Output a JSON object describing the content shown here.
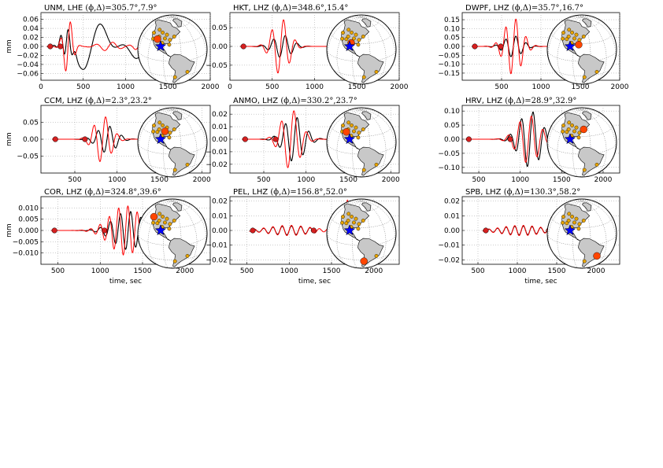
{
  "figure": {
    "ylabel": "mm",
    "xlabel": "time, sec"
  },
  "colors": {
    "observed": "#000000",
    "synthetic": "#ff0000",
    "marker": "#d62020",
    "station": "#e8a400",
    "station_selected": "#ff4500",
    "event": "#0000ff",
    "land": "#c8c8c8",
    "ocean": "#ffffff"
  },
  "chart_data": [
    {
      "type": "line",
      "station": "UNM",
      "component": "LHE",
      "title": "UNM, LHE ",
      "params": "(ϕ,Δ)=305.7°,7.9°",
      "xlim": [
        0,
        2000
      ],
      "ylim": [
        -0.075,
        0.075
      ],
      "xticks": [
        0,
        500,
        1000,
        1500,
        2000
      ],
      "yticks": [
        0.06,
        0.04,
        0.02,
        0.0,
        -0.02,
        -0.04,
        -0.06
      ],
      "ytick_labels": [
        "0.06",
        "0.04",
        "0.02",
        "0.00",
        "−0.02",
        "−0.04",
        "−0.06"
      ],
      "show_xlabel": false,
      "show_ylabel": true,
      "markers_x": [
        110,
        230
      ],
      "obs_end": 1480,
      "syn_end": 1500,
      "obs_packets": [
        {
          "t": 300,
          "a": 0.03,
          "p": 90,
          "w": 60
        },
        {
          "t": 600,
          "a": 0.062,
          "p": 480,
          "w": 180
        },
        {
          "t": 1220,
          "a": 0.03,
          "p": 400,
          "w": 220
        }
      ],
      "syn_packets": [
        {
          "t": 320,
          "a": 0.062,
          "p": 120,
          "w": 55
        },
        {
          "t": 800,
          "a": 0.01,
          "p": 200,
          "w": 120
        },
        {
          "t": 1150,
          "a": 0.008,
          "p": 150,
          "w": 60
        }
      ],
      "globe_station": {
        "lon": -107,
        "lat": 35
      }
    },
    {
      "type": "line",
      "station": "HKT",
      "component": "LHZ",
      "title": "HKT, LHZ ",
      "params": "(ϕ,Δ)=348.6°,15.4°",
      "xlim": [
        0,
        2000
      ],
      "ylim": [
        -0.09,
        0.09
      ],
      "xticks": [
        0,
        500,
        1000,
        1500,
        2000
      ],
      "yticks": [
        0.05,
        0.0,
        -0.05
      ],
      "ytick_labels": [
        "0.05",
        "0.00",
        "−0.05"
      ],
      "show_xlabel": false,
      "show_ylabel": false,
      "markers_x": [
        160
      ],
      "obs_end": 1950,
      "syn_end": 1950,
      "obs_packets": [
        {
          "t": 620,
          "a": 0.03,
          "p": 140,
          "w": 110
        }
      ],
      "syn_packets": [
        {
          "t": 600,
          "a": 0.075,
          "p": 140,
          "w": 100
        }
      ],
      "globe_station": {
        "lon": -95,
        "lat": 30
      }
    },
    {
      "type": "line",
      "station": "DWPF",
      "component": "LHZ",
      "title": "DWPF, LHZ ",
      "params": "(ϕ,Δ)=35.7°,16.7°",
      "xlim": [
        0,
        2000
      ],
      "ylim": [
        -0.19,
        0.19
      ],
      "xticks": [
        500,
        1000,
        1500,
        2000
      ],
      "yticks": [
        0.15,
        0.1,
        0.05,
        0.0,
        -0.05,
        -0.1,
        -0.15
      ],
      "ytick_labels": [
        "0.15",
        "0.10",
        "0.05",
        "0.00",
        "−0.05",
        "−0.10",
        "−0.15"
      ],
      "show_xlabel": false,
      "show_ylabel": false,
      "markers_x": [
        160,
        490
      ],
      "obs_end": 1950,
      "syn_end": 1950,
      "obs_packets": [
        {
          "t": 650,
          "a": 0.06,
          "p": 130,
          "w": 110
        }
      ],
      "syn_packets": [
        {
          "t": 650,
          "a": 0.16,
          "p": 130,
          "w": 110
        }
      ],
      "globe_station": {
        "lon": -81,
        "lat": 28
      }
    },
    {
      "type": "line",
      "station": "CCM",
      "component": "LHZ",
      "title": "CCM, LHZ ",
      "params": "(ϕ,Δ)=2.3°,23.2°",
      "xlim": [
        100,
        2100
      ],
      "ylim": [
        -0.1,
        0.1
      ],
      "xticks": [
        500,
        1000,
        1500,
        2000
      ],
      "yticks": [
        0.05,
        0.0,
        -0.05
      ],
      "ytick_labels": [
        "0.05",
        "0.00",
        "−0.05"
      ],
      "show_xlabel": false,
      "show_ylabel": true,
      "markers_x": [
        270,
        620
      ],
      "obs_end": 1600,
      "syn_end": 1600,
      "obs_packets": [
        {
          "t": 880,
          "a": 0.04,
          "p": 140,
          "w": 110
        }
      ],
      "syn_packets": [
        {
          "t": 830,
          "a": 0.07,
          "p": 140,
          "w": 100
        }
      ],
      "globe_station": {
        "lon": -91,
        "lat": 38
      }
    },
    {
      "type": "line",
      "station": "ANMO",
      "component": "LHZ",
      "title": "ANMO, LHZ ",
      "params": "(ϕ,Δ)=330.2°,23.7°",
      "xlim": [
        100,
        2100
      ],
      "ylim": [
        -0.027,
        0.027
      ],
      "xticks": [
        500,
        1000,
        1500,
        2000
      ],
      "yticks": [
        0.02,
        0.01,
        0.0,
        -0.01,
        -0.02
      ],
      "ytick_labels": [
        "0.02",
        "0.01",
        "0.00",
        "−0.01",
        "−0.02"
      ],
      "show_xlabel": false,
      "show_ylabel": false,
      "markers_x": [
        280,
        640
      ],
      "obs_end": 1950,
      "syn_end": 1950,
      "obs_packets": [
        {
          "t": 860,
          "a": 0.018,
          "p": 140,
          "w": 120
        }
      ],
      "syn_packets": [
        {
          "t": 820,
          "a": 0.024,
          "p": 150,
          "w": 110
        }
      ],
      "globe_station": {
        "lon": -107,
        "lat": 35
      }
    },
    {
      "type": "line",
      "station": "HRV",
      "component": "LHZ",
      "title": "HRV, LHZ ",
      "params": "(ϕ,Δ)=28.9°,32.9°",
      "xlim": [
        300,
        2200
      ],
      "ylim": [
        -0.12,
        0.12
      ],
      "xticks": [
        500,
        1000,
        1500,
        2000
      ],
      "yticks": [
        0.1,
        0.05,
        0.0,
        -0.05,
        -0.1
      ],
      "ytick_labels": [
        "0.10",
        "0.05",
        "0.00",
        "−0.05",
        "−0.10"
      ],
      "show_xlabel": false,
      "show_ylabel": false,
      "markers_x": [
        380,
        880
      ],
      "obs_end": 2150,
      "syn_end": 2150,
      "obs_packets": [
        {
          "t": 1120,
          "a": 0.1,
          "p": 140,
          "w": 130
        }
      ],
      "syn_packets": [
        {
          "t": 1100,
          "a": 0.085,
          "p": 140,
          "w": 130
        }
      ],
      "globe_station": {
        "lon": -71,
        "lat": 42
      }
    },
    {
      "type": "line",
      "station": "COR",
      "component": "LHZ",
      "title": "COR, LHZ ",
      "params": "(ϕ,Δ)=324.8°,39.6°",
      "xlim": [
        300,
        2300
      ],
      "ylim": [
        -0.015,
        0.015
      ],
      "xticks": [
        500,
        1000,
        1500,
        2000
      ],
      "yticks": [
        0.01,
        0.005,
        0.0,
        -0.005,
        -0.01
      ],
      "ytick_labels": [
        "0.010",
        "0.005",
        "0.000",
        "−0.005",
        "−0.010"
      ],
      "show_xlabel": true,
      "show_ylabel": true,
      "markers_x": [
        460,
        1050
      ],
      "obs_end": 1580,
      "syn_end": 1700,
      "obs_packets": [
        {
          "t": 1330,
          "a": 0.0085,
          "p": 120,
          "w": 170
        }
      ],
      "syn_packets": [
        {
          "t": 1300,
          "a": 0.011,
          "p": 110,
          "w": 180
        }
      ],
      "globe_station": {
        "lon": -123,
        "lat": 44
      }
    },
    {
      "type": "line",
      "station": "PEL",
      "component": "LHZ",
      "title": "PEL, LHZ ",
      "params": "(ϕ,Δ)=156.8°,52.0°",
      "xlim": [
        300,
        2300
      ],
      "ylim": [
        -0.023,
        0.023
      ],
      "xticks": [
        500,
        1000,
        1500,
        2000
      ],
      "yticks": [
        0.02,
        0.01,
        0.0,
        -0.01,
        -0.02
      ],
      "ytick_labels": [
        "0.02",
        "0.01",
        "0.00",
        "−0.01",
        "−0.02"
      ],
      "show_xlabel": true,
      "show_ylabel": false,
      "markers_x": [
        570,
        1290
      ],
      "obs_end": 1320,
      "syn_end": 1850,
      "obs_packets": [
        {
          "t": 1000,
          "a": 0.003,
          "p": 110,
          "w": 250
        }
      ],
      "syn_packets": [
        {
          "t": 1000,
          "a": 0.0035,
          "p": 110,
          "w": 250
        },
        {
          "t": 1660,
          "a": 0.022,
          "p": 120,
          "w": 80
        }
      ],
      "globe_station": {
        "lon": -70,
        "lat": -33
      }
    },
    {
      "type": "line",
      "station": "SPB",
      "component": "LHZ",
      "title": "SPB, LHZ ",
      "params": "(ϕ,Δ)=130.3°,58.2°",
      "xlim": [
        300,
        2300
      ],
      "ylim": [
        -0.023,
        0.023
      ],
      "xticks": [
        500,
        1000,
        1500,
        2000
      ],
      "yticks": [
        0.02,
        0.01,
        0.0,
        -0.01,
        -0.02
      ],
      "ytick_labels": [
        "0.02",
        "0.01",
        "0.00",
        "−0.01",
        "−0.02"
      ],
      "show_xlabel": true,
      "show_ylabel": false,
      "markers_x": [
        600,
        1400
      ],
      "obs_end": 1440,
      "syn_end": 1950,
      "obs_packets": [
        {
          "t": 1050,
          "a": 0.003,
          "p": 110,
          "w": 260
        }
      ],
      "syn_packets": [
        {
          "t": 1050,
          "a": 0.0035,
          "p": 110,
          "w": 260
        },
        {
          "t": 1800,
          "a": 0.022,
          "p": 120,
          "w": 80
        }
      ],
      "globe_station": {
        "lon": -47,
        "lat": -23
      }
    }
  ],
  "globe": {
    "center": {
      "lon": -75,
      "lat": 20
    },
    "event": {
      "lon": -97,
      "lat": 24
    },
    "stations": [
      {
        "lon": -107,
        "lat": 35
      },
      {
        "lon": -95,
        "lat": 30
      },
      {
        "lon": -81,
        "lat": 28
      },
      {
        "lon": -91,
        "lat": 38
      },
      {
        "lon": -71,
        "lat": 42
      },
      {
        "lon": -123,
        "lat": 44
      },
      {
        "lon": -70,
        "lat": -33
      },
      {
        "lon": -47,
        "lat": -23
      },
      {
        "lon": -105,
        "lat": 40
      },
      {
        "lon": -100,
        "lat": 48
      },
      {
        "lon": -88,
        "lat": 45
      },
      {
        "lon": -117,
        "lat": 34
      },
      {
        "lon": -80,
        "lat": 36
      },
      {
        "lon": -112,
        "lat": 52
      }
    ]
  }
}
